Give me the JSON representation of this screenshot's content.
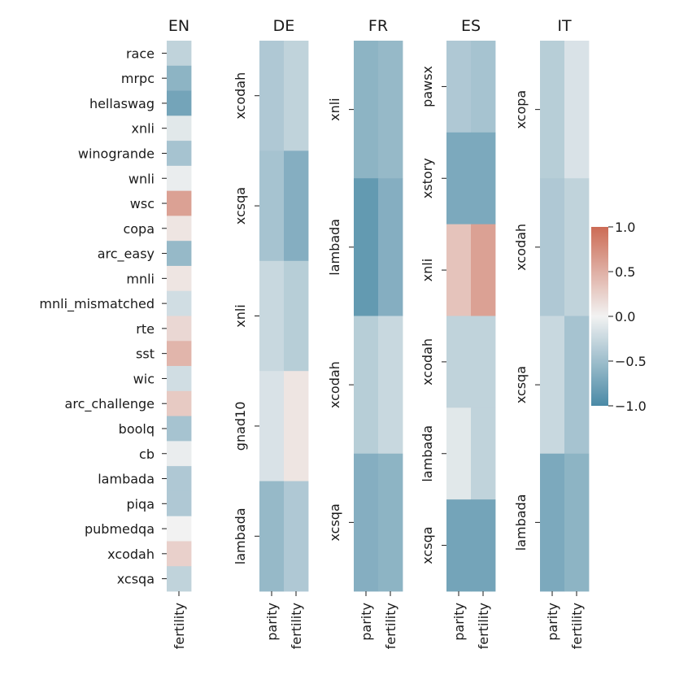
{
  "chart_data": {
    "type": "heatmap",
    "colorbar": {
      "min": -1.0,
      "max": 1.0,
      "ticks": [
        1.0,
        0.5,
        0.0,
        -0.5,
        -1.0
      ],
      "tick_labels": [
        "1.0",
        "0.5",
        "0.0",
        "−0.5",
        "−1.0"
      ],
      "low_color": "#4a8aa6",
      "mid_color": "#f2f2f2",
      "high_color": "#cc6b55"
    },
    "panels": [
      {
        "title": "EN",
        "columns": [
          "fertility"
        ],
        "rows": [
          "race",
          "mrpc",
          "hellaswag",
          "xnli",
          "winogrande",
          "wnli",
          "wsc",
          "copa",
          "arc_easy",
          "mnli",
          "mnli_mismatched",
          "rte",
          "sst",
          "wic",
          "arc_challenge",
          "boolq",
          "cb",
          "lambada",
          "piqa",
          "pubmedqa",
          "xcodah",
          "xcsqa"
        ],
        "values": [
          [
            -0.3
          ],
          [
            -0.6
          ],
          [
            -0.75
          ],
          [
            -0.1
          ],
          [
            -0.45
          ],
          [
            -0.05
          ],
          [
            0.6
          ],
          [
            0.1
          ],
          [
            -0.55
          ],
          [
            0.1
          ],
          [
            -0.2
          ],
          [
            0.2
          ],
          [
            0.45
          ],
          [
            -0.2
          ],
          [
            0.3
          ],
          [
            -0.45
          ],
          [
            -0.05
          ],
          [
            -0.4
          ],
          [
            -0.4
          ],
          [
            0.0
          ],
          [
            0.25
          ],
          [
            -0.3
          ]
        ]
      },
      {
        "title": "DE",
        "columns": [
          "parity",
          "fertility"
        ],
        "rows": [
          "xcodah",
          "xcsqa",
          "xnli",
          "gnad10",
          "lambada"
        ],
        "values": [
          [
            -0.4,
            -0.3
          ],
          [
            -0.45,
            -0.65
          ],
          [
            -0.25,
            -0.35
          ],
          [
            -0.15,
            0.1
          ],
          [
            -0.55,
            -0.4
          ]
        ]
      },
      {
        "title": "FR",
        "columns": [
          "parity",
          "fertility"
        ],
        "rows": [
          "xnli",
          "lambada",
          "xcodah",
          "xcsqa"
        ],
        "values": [
          [
            -0.6,
            -0.55
          ],
          [
            -0.85,
            -0.65
          ],
          [
            -0.35,
            -0.25
          ],
          [
            -0.65,
            -0.6
          ]
        ]
      },
      {
        "title": "ES",
        "columns": [
          "parity",
          "fertility"
        ],
        "rows": [
          "pawsx",
          "xstory",
          "xnli",
          "xcodah",
          "lambada",
          "xcsqa"
        ],
        "values": [
          [
            -0.4,
            -0.45
          ],
          [
            -0.7,
            -0.7
          ],
          [
            0.35,
            0.6
          ],
          [
            -0.3,
            -0.3
          ],
          [
            -0.1,
            -0.3
          ],
          [
            -0.75,
            -0.75
          ]
        ]
      },
      {
        "title": "IT",
        "columns": [
          "parity",
          "fertility"
        ],
        "rows": [
          "xcopa",
          "xcodah",
          "xcsqa",
          "lambada"
        ],
        "values": [
          [
            -0.35,
            -0.15
          ],
          [
            -0.4,
            -0.3
          ],
          [
            -0.25,
            -0.45
          ],
          [
            -0.7,
            -0.6
          ]
        ]
      }
    ]
  }
}
